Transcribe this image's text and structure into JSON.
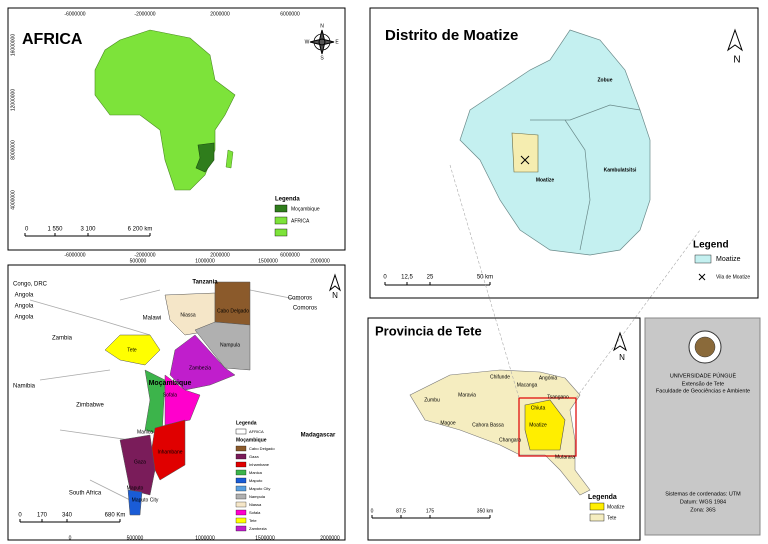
{
  "africa": {
    "title": "AFRICA",
    "legend_title": "Legenda",
    "legend": [
      "Moçambique",
      "AFRICA"
    ],
    "scale": [
      "0",
      "1 550",
      "3 100",
      "6 200 km"
    ],
    "top_coords": [
      "-6000000",
      "-2000000",
      "2000000",
      "6000000"
    ],
    "bottom_coords": [
      "-6000000",
      "-2000000",
      "2000000",
      "6000000"
    ],
    "left_coords": [
      "16000000",
      "12000000",
      "8000000",
      "4000000"
    ],
    "compass": [
      "N",
      "S",
      "E",
      "W"
    ]
  },
  "moatize": {
    "title": "Distrito de Moatize",
    "places": [
      "Zobue",
      "Moatize",
      "Kambulatsitsi"
    ],
    "legend_title": "Legend",
    "legend": [
      "Moatize",
      "Vila de Moatize"
    ],
    "scale": [
      "0",
      "12,5",
      "25",
      "50 km"
    ],
    "north": "N"
  },
  "mozambique": {
    "countries": [
      "Tanzania",
      "Malawi",
      "Zambia",
      "Zimbabwe",
      "South Africa",
      "Madagascar",
      "Congo, DRC",
      "Angola",
      "Angola",
      "Angola",
      "Comoros",
      "Comoros",
      "Namibia"
    ],
    "provinces": [
      "Niassa",
      "Cabo Delgado",
      "Nampula",
      "Tete",
      "Zambezia",
      "Manica",
      "Sofala",
      "Inhambane",
      "Gaza",
      "Maputo",
      "Maputo City"
    ],
    "country_label": "Moçambique",
    "north": "N",
    "legend_title": "Legenda",
    "legend_africa": "AFRICA",
    "legend_group": "Moçambique",
    "legend": [
      "Cabo Delgado",
      "Gaza",
      "Inhambane",
      "Manica",
      "Maputo",
      "Maputo City",
      "Nampula",
      "Niassa",
      "Sofala",
      "Tete",
      "Zambezia"
    ],
    "scale": [
      "0",
      "170",
      "340",
      "680 Km"
    ],
    "top_coords": [
      "500000",
      "1000000",
      "1500000",
      "2000000"
    ],
    "bottom_coords": [
      "0",
      "500000",
      "1000000",
      "1500000",
      "2000000"
    ]
  },
  "tete": {
    "title": "Provincia de Tete",
    "north": "N",
    "places": [
      "Zumbu",
      "Maravia",
      "Chifunde",
      "Macanga",
      "Angónia",
      "Tsangano",
      "Chiuta",
      "Moatize",
      "Magoe",
      "Cahora Bassa",
      "Changara",
      "Mutarara"
    ],
    "legend_title": "Legenda",
    "legend": [
      "Moatize",
      "Tete"
    ],
    "scale": [
      "0",
      "87,5",
      "175",
      "350 km"
    ]
  },
  "institution": {
    "name": "UNIVERSIDADE PÚNGUÈ",
    "lines": [
      "Extensão de Tete",
      "Faculdade de Geociências e Ambiente"
    ],
    "info": [
      "Sistemas de cordenadas: UTM",
      "Datum: WGS 1984",
      "Zona: 36S"
    ]
  }
}
